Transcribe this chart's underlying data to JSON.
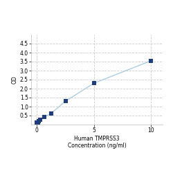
{
  "x_values": [
    0.0,
    0.078,
    0.156,
    0.313,
    0.625,
    1.25,
    2.5,
    5.0,
    10.0
  ],
  "y_values": [
    0.1,
    0.13,
    0.18,
    0.28,
    0.42,
    0.62,
    1.3,
    2.3,
    3.55
  ],
  "line_color": "#aecde0",
  "marker_color": "#1f3d7a",
  "marker_size": 4,
  "xlabel_line1": "Human TMPRSS3",
  "xlabel_line2": "Concentration (ng/ml)",
  "ylabel": "OD",
  "xlim": [
    -0.5,
    11
  ],
  "ylim": [
    0,
    5
  ],
  "yticks": [
    0.5,
    1,
    1.5,
    2,
    2.5,
    3,
    3.5,
    4,
    4.5
  ],
  "xticks": [
    0,
    5,
    10
  ],
  "grid_color": "#cccccc",
  "background_color": "#ffffff",
  "axis_fontsize": 5.5,
  "tick_fontsize": 5.5,
  "ylabel_fontsize": 5.5
}
